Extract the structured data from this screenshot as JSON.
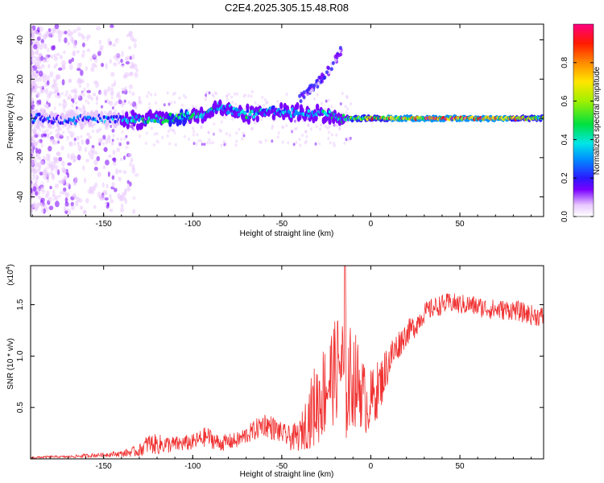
{
  "title": "C2E4.2025.305.15.48.R08",
  "colors": {
    "snr_line": "#f03030",
    "axis": "#000000"
  },
  "chart_data": [
    {
      "type": "heatmap",
      "xlabel": "Height of straight line (km)",
      "ylabel": "Frequency (Hz)",
      "xlim": [
        -191,
        97
      ],
      "ylim": [
        -50,
        48
      ],
      "xticks": [
        "-150",
        "-100",
        "-50",
        "0",
        "50"
      ],
      "yticks": [
        "40",
        "20",
        "0",
        "-20",
        "-40"
      ],
      "xtick_values": [
        -150,
        -100,
        -50,
        0,
        50
      ],
      "ytick_values": [
        40,
        20,
        0,
        -20,
        -40
      ],
      "colorbar": {
        "label": "Normalized spectral amplitude",
        "ticks": [
          "0.0",
          "0.2",
          "0.4",
          "0.6",
          "0.8"
        ],
        "tick_values": [
          0.0,
          0.2,
          0.4,
          0.6,
          0.8
        ],
        "range": [
          0,
          1
        ]
      },
      "ridge": [
        {
          "x": -191,
          "f": 0,
          "a": 0.35
        },
        {
          "x": -170,
          "f": -1,
          "a": 0.3
        },
        {
          "x": -150,
          "f": 0,
          "a": 0.35
        },
        {
          "x": -130,
          "f": -1,
          "a": 0.45
        },
        {
          "x": -110,
          "f": 0,
          "a": 0.6
        },
        {
          "x": -95,
          "f": 2,
          "a": 0.55
        },
        {
          "x": -85,
          "f": 6,
          "a": 0.45
        },
        {
          "x": -70,
          "f": 2,
          "a": 0.45
        },
        {
          "x": -55,
          "f": 4,
          "a": 0.4
        },
        {
          "x": -40,
          "f": 3,
          "a": 0.45
        },
        {
          "x": -25,
          "f": 2,
          "a": 0.45
        },
        {
          "x": -15,
          "f": 0,
          "a": 0.5
        },
        {
          "x": 0,
          "f": 0,
          "a": 0.8
        },
        {
          "x": 25,
          "f": 0,
          "a": 0.95
        },
        {
          "x": 50,
          "f": 0,
          "a": 0.97
        },
        {
          "x": 75,
          "f": 0,
          "a": 0.9
        },
        {
          "x": 97,
          "f": 0,
          "a": 0.6
        }
      ],
      "branch": [
        {
          "x": -40,
          "f": 10
        },
        {
          "x": -30,
          "f": 18
        },
        {
          "x": -22,
          "f": 26
        },
        {
          "x": -16,
          "f": 36
        }
      ]
    },
    {
      "type": "line",
      "xlabel": "Height of straight line (km)",
      "ylabel": "SNR (10 * v/v)",
      "exponent_label": "(x10",
      "exponent_power": "4",
      "xlim": [
        -191,
        97
      ],
      "ylim": [
        0,
        1.88
      ],
      "xticks": [
        "-150",
        "-100",
        "-50",
        "0",
        "50"
      ],
      "yticks": [
        "1.5",
        "1.0",
        "0.5"
      ],
      "xtick_values": [
        -150,
        -100,
        -50,
        0,
        50
      ],
      "ytick_values": [
        1.5,
        1.0,
        0.5
      ],
      "series": [
        {
          "name": "SNR",
          "x": [
            -191,
            -180,
            -170,
            -160,
            -150,
            -140,
            -130,
            -125,
            -120,
            -110,
            -100,
            -92,
            -85,
            -75,
            -65,
            -60,
            -55,
            -50,
            -45,
            -40,
            -35,
            -32,
            -28,
            -24,
            -20,
            -17,
            -14,
            -10,
            -6,
            -2,
            2,
            6,
            10,
            15,
            20,
            25,
            30,
            35,
            40,
            45,
            50,
            55,
            60,
            70,
            80,
            90,
            97
          ],
          "values": [
            0.01,
            0.02,
            0.02,
            0.03,
            0.04,
            0.05,
            0.08,
            0.15,
            0.14,
            0.14,
            0.16,
            0.22,
            0.15,
            0.18,
            0.28,
            0.34,
            0.3,
            0.25,
            0.2,
            0.22,
            0.4,
            0.5,
            0.6,
            0.75,
            0.85,
            0.95,
            0.72,
            0.8,
            0.7,
            0.52,
            0.62,
            0.75,
            0.95,
            1.1,
            1.22,
            1.3,
            1.42,
            1.47,
            1.5,
            1.52,
            1.5,
            1.5,
            1.48,
            1.45,
            1.45,
            1.4,
            1.38
          ],
          "noise_amp": [
            0.01,
            0.01,
            0.01,
            0.02,
            0.02,
            0.03,
            0.06,
            0.1,
            0.1,
            0.08,
            0.08,
            0.1,
            0.08,
            0.08,
            0.1,
            0.12,
            0.12,
            0.1,
            0.12,
            0.15,
            0.3,
            0.4,
            0.45,
            0.5,
            0.5,
            0.55,
            0.6,
            0.5,
            0.4,
            0.3,
            0.3,
            0.25,
            0.2,
            0.15,
            0.12,
            0.12,
            0.1,
            0.1,
            0.1,
            0.1,
            0.1,
            0.1,
            0.1,
            0.1,
            0.1,
            0.1,
            0.1
          ]
        }
      ]
    }
  ]
}
